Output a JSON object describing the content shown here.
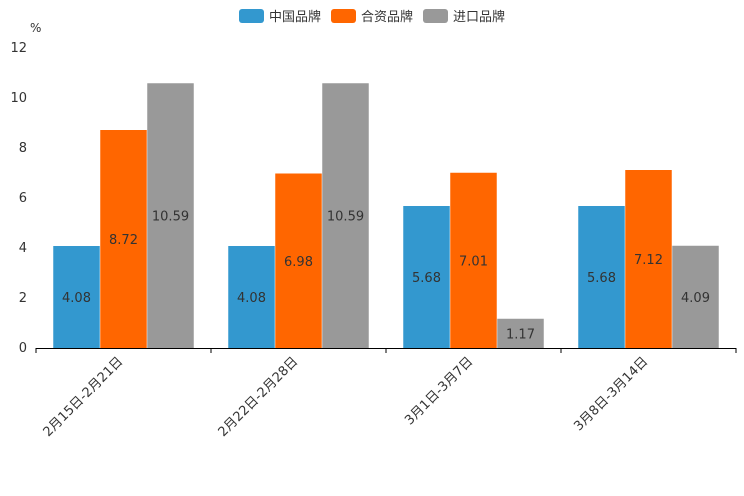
{
  "chart_data": {
    "type": "bar",
    "ylabel": "%",
    "ylim": [
      0,
      12
    ],
    "yticks": [
      0,
      2,
      4,
      6,
      8,
      10,
      12
    ],
    "legend_position": "top-center",
    "categories": [
      "2月15日-2月21日",
      "2月22日-2月28日",
      "3月1日-3月7日",
      "3月8日-3月14日"
    ],
    "series": [
      {
        "name": "中国品牌",
        "color": "#3398cf",
        "values": [
          4.08,
          4.08,
          5.68,
          5.68
        ]
      },
      {
        "name": "合资品牌",
        "color": "#ff6600",
        "values": [
          8.72,
          6.98,
          7.01,
          7.12
        ]
      },
      {
        "name": "进口品牌",
        "color": "#999999",
        "values": [
          10.59,
          10.59,
          1.17,
          4.09
        ]
      }
    ]
  }
}
